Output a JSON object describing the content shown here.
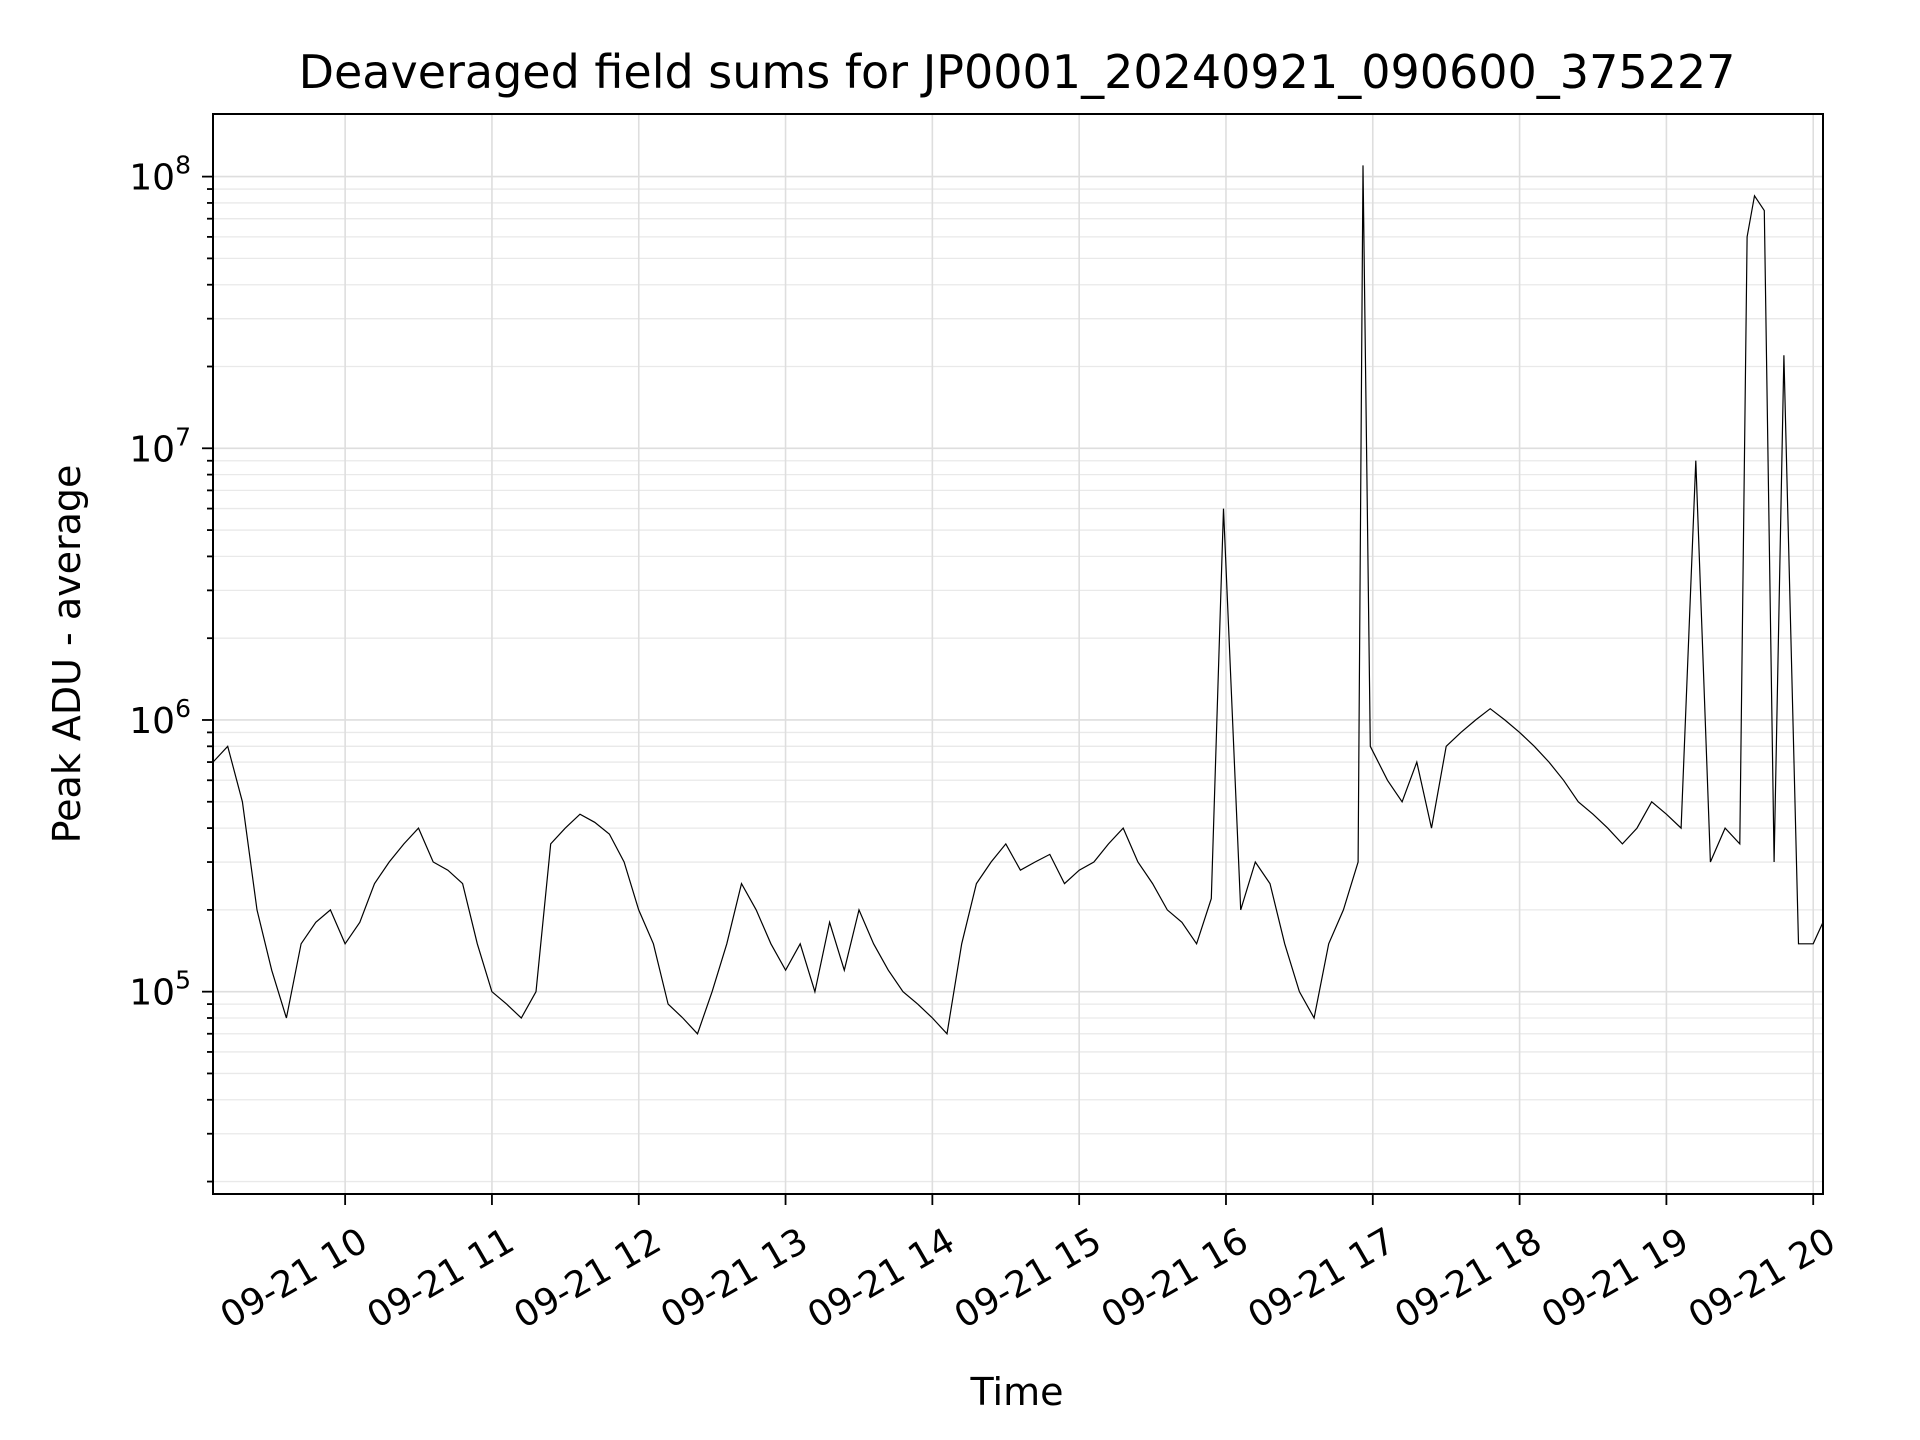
{
  "chart_data": {
    "type": "line",
    "title": "Deaveraged field sums for JP0001_20240921_090600_375227",
    "xlabel": "Time",
    "ylabel": "Peak ADU - average",
    "yscale": "log",
    "ylim": [
      18000,
      170000000
    ],
    "xlim": [
      "2024-09-21 09:06",
      "2024-09-21 20:04"
    ],
    "grid": true,
    "x_ticks": [
      {
        "value": "2024-09-21 10:00",
        "label": "09-21 10"
      },
      {
        "value": "2024-09-21 11:00",
        "label": "09-21 11"
      },
      {
        "value": "2024-09-21 12:00",
        "label": "09-21 12"
      },
      {
        "value": "2024-09-21 13:00",
        "label": "09-21 13"
      },
      {
        "value": "2024-09-21 14:00",
        "label": "09-21 14"
      },
      {
        "value": "2024-09-21 15:00",
        "label": "09-21 15"
      },
      {
        "value": "2024-09-21 16:00",
        "label": "09-21 16"
      },
      {
        "value": "2024-09-21 17:00",
        "label": "09-21 17"
      },
      {
        "value": "2024-09-21 18:00",
        "label": "09-21 18"
      },
      {
        "value": "2024-09-21 19:00",
        "label": "09-21 19"
      },
      {
        "value": "2024-09-21 20:00",
        "label": "09-21 20"
      }
    ],
    "y_ticks": [
      {
        "value": 100000,
        "base": "10",
        "exp": "5"
      },
      {
        "value": 1000000,
        "base": "10",
        "exp": "6"
      },
      {
        "value": 10000000,
        "base": "10",
        "exp": "7"
      },
      {
        "value": 100000000,
        "base": "10",
        "exp": "8"
      }
    ],
    "series": [
      {
        "color": "#000000",
        "x": [
          "2024-09-21 09:06",
          "2024-09-21 09:12",
          "2024-09-21 09:18",
          "2024-09-21 09:24",
          "2024-09-21 09:30",
          "2024-09-21 09:36",
          "2024-09-21 09:42",
          "2024-09-21 09:48",
          "2024-09-21 09:54",
          "2024-09-21 10:00",
          "2024-09-21 10:06",
          "2024-09-21 10:12",
          "2024-09-21 10:18",
          "2024-09-21 10:24",
          "2024-09-21 10:30",
          "2024-09-21 10:36",
          "2024-09-21 10:42",
          "2024-09-21 10:48",
          "2024-09-21 10:54",
          "2024-09-21 11:00",
          "2024-09-21 11:06",
          "2024-09-21 11:12",
          "2024-09-21 11:18",
          "2024-09-21 11:24",
          "2024-09-21 11:30",
          "2024-09-21 11:36",
          "2024-09-21 11:42",
          "2024-09-21 11:48",
          "2024-09-21 11:54",
          "2024-09-21 12:00",
          "2024-09-21 12:06",
          "2024-09-21 12:12",
          "2024-09-21 12:18",
          "2024-09-21 12:24",
          "2024-09-21 12:30",
          "2024-09-21 12:36",
          "2024-09-21 12:42",
          "2024-09-21 12:48",
          "2024-09-21 12:54",
          "2024-09-21 13:00",
          "2024-09-21 13:06",
          "2024-09-21 13:12",
          "2024-09-21 13:18",
          "2024-09-21 13:24",
          "2024-09-21 13:30",
          "2024-09-21 13:36",
          "2024-09-21 13:42",
          "2024-09-21 13:48",
          "2024-09-21 13:54",
          "2024-09-21 14:00",
          "2024-09-21 14:06",
          "2024-09-21 14:12",
          "2024-09-21 14:18",
          "2024-09-21 14:24",
          "2024-09-21 14:30",
          "2024-09-21 14:36",
          "2024-09-21 14:42",
          "2024-09-21 14:48",
          "2024-09-21 14:54",
          "2024-09-21 15:00",
          "2024-09-21 15:06",
          "2024-09-21 15:12",
          "2024-09-21 15:18",
          "2024-09-21 15:24",
          "2024-09-21 15:30",
          "2024-09-21 15:36",
          "2024-09-21 15:42",
          "2024-09-21 15:48",
          "2024-09-21 15:54",
          "2024-09-21 15:59",
          "2024-09-21 16:06",
          "2024-09-21 16:12",
          "2024-09-21 16:18",
          "2024-09-21 16:24",
          "2024-09-21 16:30",
          "2024-09-21 16:36",
          "2024-09-21 16:42",
          "2024-09-21 16:48",
          "2024-09-21 16:54",
          "2024-09-21 16:56",
          "2024-09-21 16:59",
          "2024-09-21 17:06",
          "2024-09-21 17:12",
          "2024-09-21 17:18",
          "2024-09-21 17:24",
          "2024-09-21 17:30",
          "2024-09-21 17:36",
          "2024-09-21 17:42",
          "2024-09-21 17:48",
          "2024-09-21 17:54",
          "2024-09-21 18:00",
          "2024-09-21 18:06",
          "2024-09-21 18:12",
          "2024-09-21 18:18",
          "2024-09-21 18:24",
          "2024-09-21 18:30",
          "2024-09-21 18:36",
          "2024-09-21 18:42",
          "2024-09-21 18:48",
          "2024-09-21 18:54",
          "2024-09-21 19:00",
          "2024-09-21 19:06",
          "2024-09-21 19:12",
          "2024-09-21 19:18",
          "2024-09-21 19:24",
          "2024-09-21 19:30",
          "2024-09-21 19:33",
          "2024-09-21 19:36",
          "2024-09-21 19:40",
          "2024-09-21 19:44",
          "2024-09-21 19:48",
          "2024-09-21 19:54",
          "2024-09-21 20:00",
          "2024-09-21 20:04"
        ],
        "y": [
          700000,
          800000,
          500000,
          200000,
          120000,
          80000,
          150000,
          180000,
          200000,
          150000,
          180000,
          250000,
          300000,
          350000,
          400000,
          300000,
          280000,
          250000,
          150000,
          100000,
          90000,
          80000,
          100000,
          350000,
          400000,
          450000,
          420000,
          380000,
          300000,
          200000,
          150000,
          90000,
          80000,
          70000,
          100000,
          150000,
          250000,
          200000,
          150000,
          120000,
          150000,
          100000,
          180000,
          120000,
          200000,
          150000,
          120000,
          100000,
          90000,
          80000,
          70000,
          150000,
          250000,
          300000,
          350000,
          280000,
          300000,
          320000,
          250000,
          280000,
          300000,
          350000,
          400000,
          300000,
          250000,
          200000,
          180000,
          150000,
          220000,
          6000000,
          200000,
          300000,
          250000,
          150000,
          100000,
          80000,
          150000,
          200000,
          300000,
          110000000,
          800000,
          600000,
          500000,
          700000,
          400000,
          800000,
          900000,
          1000000,
          1100000,
          1000000,
          900000,
          800000,
          700000,
          600000,
          500000,
          450000,
          400000,
          350000,
          400000,
          500000,
          450000,
          400000,
          9000000,
          300000,
          400000,
          350000,
          60000000,
          85000000,
          75000000,
          300000,
          22000000,
          150000,
          150000,
          180000
        ]
      }
    ]
  }
}
